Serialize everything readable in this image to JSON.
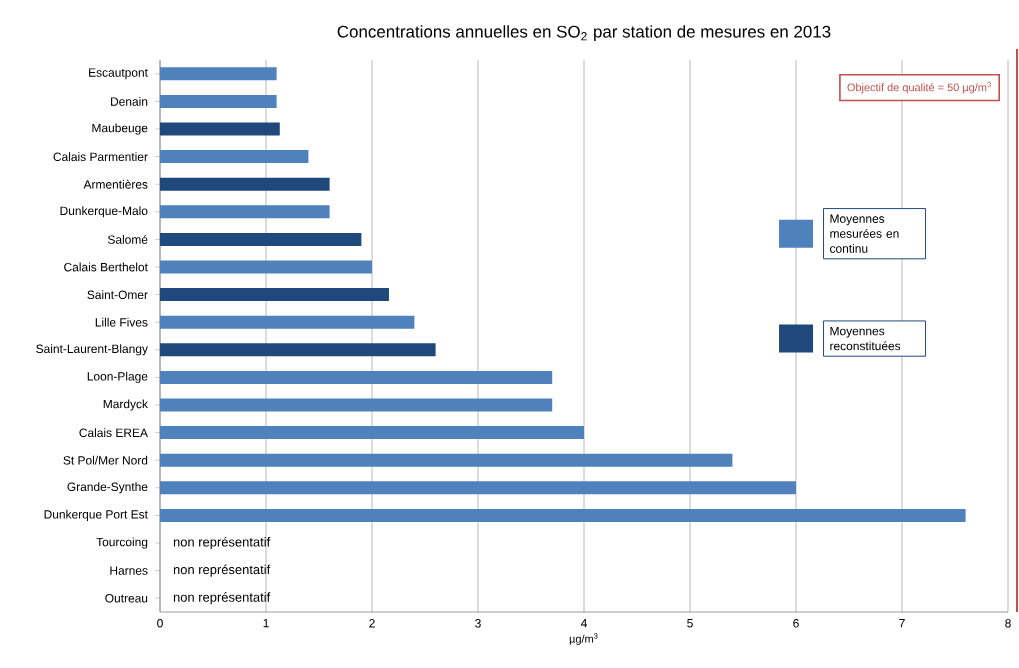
{
  "chart_data": {
    "type": "bar",
    "orientation": "horizontal",
    "title": "Concentrations annuelles en SO$_{2}$ par station de mesures en 2013",
    "xlabel": "µg/m$^{3}$",
    "categories": [
      "Escautpont",
      "Denain",
      "Maubeuge",
      "Calais Parmentier",
      "Armentières",
      "Dunkerque-Malo",
      "Salomé",
      "Calais Berthelot",
      "Saint-Omer",
      "Lille Fives",
      "Saint-Laurent-Blangy",
      "Loon-Plage",
      "Mardyck",
      "Calais EREA",
      "St Pol/Mer Nord",
      "Grande-Synthe",
      "Dunkerque Port Est",
      "Tourcoing",
      "Harnes",
      "Outreau"
    ],
    "series": [
      {
        "name": "Moyennes mesurées en continu",
        "color": "#4f81bd",
        "values": [
          1.1,
          1.1,
          null,
          1.4,
          null,
          1.6,
          null,
          2.0,
          null,
          2.4,
          null,
          3.7,
          3.7,
          4.0,
          5.4,
          6.0,
          7.6,
          null,
          null,
          null
        ],
        "value_labels": [
          null,
          null,
          null,
          null,
          null,
          null,
          null,
          null,
          null,
          null,
          null,
          null,
          null,
          null,
          null,
          null,
          null,
          "non représentatif",
          "non représentatif",
          "non représentatif"
        ]
      },
      {
        "name": "Moyennes reconstituées",
        "color": "#1f497d",
        "values": [
          null,
          null,
          1.13,
          null,
          1.6,
          null,
          1.9,
          null,
          2.16,
          null,
          2.6,
          null,
          null,
          null,
          null,
          null,
          null,
          null,
          null,
          null
        ]
      }
    ],
    "xlim": [
      0,
      8
    ],
    "xticks": [
      0,
      1,
      2,
      3,
      4,
      5,
      6,
      7,
      8
    ],
    "grid": "x",
    "legend": "right",
    "annotations": [
      "Objectif de qualité = 50 µg/m$^{3}$"
    ]
  }
}
